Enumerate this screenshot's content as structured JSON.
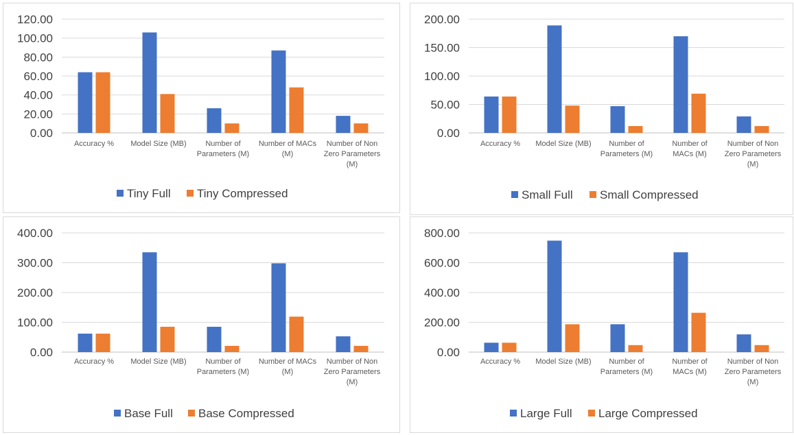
{
  "colors": {
    "full": "#4472C4",
    "compressed": "#ED7D31",
    "grid": "#d9d9d9",
    "axis": "#bfbfbf"
  },
  "chart_data": [
    {
      "type": "bar",
      "title": "",
      "categories": [
        [
          "Accuracy %"
        ],
        [
          "Model Size (MB)"
        ],
        [
          "Number of",
          "Parameters (M)"
        ],
        [
          "Number of MACs",
          "(M)"
        ],
        [
          "Number of Non",
          "Zero Parameters",
          "(M)"
        ]
      ],
      "series": [
        {
          "name": "Tiny Full",
          "values": [
            64,
            106,
            26,
            87,
            18
          ]
        },
        {
          "name": "Tiny Compressed",
          "values": [
            64,
            41,
            10,
            48,
            10
          ]
        }
      ],
      "yticks": [
        "0.00",
        "20.00",
        "40.00",
        "60.00",
        "80.00",
        "100.00",
        "120.00"
      ],
      "ylim": [
        0,
        120
      ],
      "legend_position": "bottom"
    },
    {
      "type": "bar",
      "title": "",
      "categories": [
        [
          "Accuracy %"
        ],
        [
          "Model Size (MB)"
        ],
        [
          "Number of",
          "Parameters (M)"
        ],
        [
          "Number of",
          "MACs (M)"
        ],
        [
          "Number of Non",
          "Zero Parameters",
          "(M)"
        ]
      ],
      "series": [
        {
          "name": "Small Full",
          "values": [
            64,
            189,
            47,
            170,
            29
          ]
        },
        {
          "name": "Small Compressed",
          "values": [
            64,
            48,
            12,
            69,
            12
          ]
        }
      ],
      "yticks": [
        "0.00",
        "50.00",
        "100.00",
        "150.00",
        "200.00"
      ],
      "ylim": [
        0,
        200
      ],
      "legend_position": "bottom"
    },
    {
      "type": "bar",
      "title": "",
      "categories": [
        [
          "Accuracy %"
        ],
        [
          "Model Size (MB)"
        ],
        [
          "Number of",
          "Parameters (M)"
        ],
        [
          "Number of MACs",
          "(M)"
        ],
        [
          "Number of Non",
          "Zero Parameters",
          "(M)"
        ]
      ],
      "series": [
        {
          "name": "Base Full",
          "values": [
            62,
            335,
            85,
            298,
            53
          ]
        },
        {
          "name": "Base Compressed",
          "values": [
            62,
            85,
            21,
            119,
            21
          ]
        }
      ],
      "yticks": [
        "0.00",
        "100.00",
        "200.00",
        "300.00",
        "400.00"
      ],
      "ylim": [
        0,
        400
      ],
      "legend_position": "bottom"
    },
    {
      "type": "bar",
      "title": "",
      "categories": [
        [
          "Accuracy %"
        ],
        [
          "Model Size (MB)"
        ],
        [
          "Number of",
          "Parameters (M)"
        ],
        [
          "Number of",
          "MACs (M)"
        ],
        [
          "Number of Non",
          "Zero Parameters",
          "(M)"
        ]
      ],
      "series": [
        {
          "name": "Large Full",
          "values": [
            63,
            748,
            187,
            670,
            119
          ]
        },
        {
          "name": "Large Compressed",
          "values": [
            63,
            187,
            47,
            264,
            47
          ]
        }
      ],
      "yticks": [
        "0.00",
        "200.00",
        "400.00",
        "600.00",
        "800.00"
      ],
      "ylim": [
        0,
        800
      ],
      "legend_position": "bottom"
    }
  ]
}
